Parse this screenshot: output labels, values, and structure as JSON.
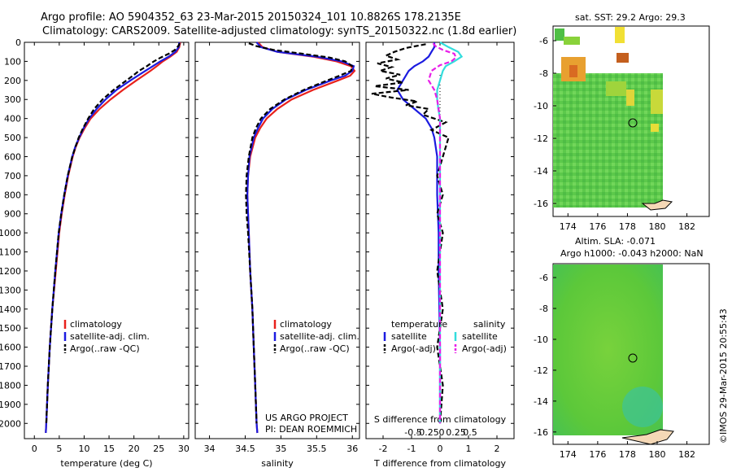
{
  "title_line1": "Argo profile: AO 5904352_63 23-Mar-2015 20150324_101 10.8826S 178.2135E",
  "title_line2": "Climatology: CARS2009. Satellite-adjusted climatology: synTS_20150322.nc (1.8d earlier)",
  "colors": {
    "climatology": "#e8211c",
    "satellite": "#1b1be0",
    "argo": "#000000",
    "satellite_s": "#33dddd",
    "argo_s": "#e81ee8"
  },
  "depth_ticks": [
    "0",
    "100",
    "200",
    "300",
    "400",
    "500",
    "600",
    "700",
    "800",
    "900",
    "1000",
    "1100",
    "1200",
    "1300",
    "1400",
    "1500",
    "1600",
    "1700",
    "1800",
    "1900",
    "2000"
  ],
  "footer_left": "US ARGO PROJECT",
  "footer_left2": "PI: DEAN ROEMMICH",
  "stamp": "©IMOS 29-Mar-2015 20:55:43",
  "chart_data": [
    {
      "type": "line",
      "xlabel": "temperature (deg C)",
      "ylabel": "",
      "xlim": [
        -2,
        31
      ],
      "ylim": [
        2080,
        0
      ],
      "x_ticks": [
        "0",
        "5",
        "10",
        "15",
        "20",
        "25",
        "30"
      ],
      "legend": [
        "climatology",
        "satellite-adj. clim.",
        "Argo(..raw -QC)"
      ],
      "series": [
        {
          "name": "climatology",
          "depth": [
            0,
            25,
            50,
            75,
            100,
            125,
            150,
            200,
            250,
            300,
            350,
            400,
            450,
            500,
            550,
            600,
            700,
            800,
            900,
            1000,
            1200,
            1400,
            1600,
            1800,
            2000,
            2050
          ],
          "values": [
            29.3,
            29.1,
            28.6,
            27.3,
            25.8,
            24.6,
            23.3,
            20.5,
            17.8,
            15.3,
            13.1,
            11.3,
            10.1,
            9.1,
            8.3,
            7.7,
            6.8,
            6.1,
            5.5,
            5.0,
            4.3,
            3.6,
            3.1,
            2.7,
            2.4,
            2.3
          ]
        },
        {
          "name": "satellite-adj. clim.",
          "depth": [
            0,
            25,
            50,
            75,
            100,
            125,
            150,
            200,
            250,
            300,
            350,
            400,
            450,
            500,
            550,
            600,
            700,
            800,
            900,
            1000,
            1200,
            1400,
            1600,
            1800,
            2000,
            2050
          ],
          "values": [
            29.1,
            29.0,
            28.3,
            27.0,
            25.3,
            23.8,
            22.3,
            19.3,
            16.5,
            14.3,
            12.5,
            11.0,
            9.9,
            9.0,
            8.2,
            7.6,
            6.7,
            6.0,
            5.4,
            4.9,
            4.2,
            3.6,
            3.1,
            2.7,
            2.4,
            2.3
          ]
        },
        {
          "name": "Argo(..raw -QC)",
          "depth": [
            5,
            20,
            40,
            60,
            80,
            100,
            125,
            150,
            175,
            200,
            250,
            300,
            350,
            400,
            450,
            500,
            600,
            700,
            800,
            900,
            1000,
            1200,
            1400,
            1600,
            1800,
            2000
          ],
          "values": [
            29.2,
            28.9,
            28.2,
            27.0,
            25.4,
            24.0,
            22.6,
            21.0,
            19.8,
            18.5,
            15.9,
            13.7,
            12.0,
            10.8,
            9.8,
            8.9,
            7.6,
            6.7,
            6.0,
            5.4,
            4.9,
            4.2,
            3.6,
            3.1,
            2.7,
            2.4
          ]
        }
      ]
    },
    {
      "type": "line",
      "xlabel": "salinity",
      "ylabel": "",
      "xlim": [
        33.8,
        36.1
      ],
      "ylim": [
        2080,
        0
      ],
      "x_ticks": [
        "34",
        "34.5",
        "35",
        "35.5",
        "36"
      ],
      "legend": [
        "climatology",
        "satellite-adj. clim.",
        "Argo(..raw -QC)"
      ],
      "series": [
        {
          "name": "climatology",
          "depth": [
            0,
            25,
            50,
            75,
            100,
            125,
            150,
            175,
            200,
            250,
            300,
            350,
            400,
            450,
            500,
            600,
            700,
            800,
            900,
            1000,
            1200,
            1400,
            1600,
            1800,
            2000,
            2050
          ],
          "values": [
            34.68,
            34.74,
            34.95,
            35.45,
            35.78,
            35.98,
            36.03,
            35.97,
            35.8,
            35.45,
            35.15,
            34.95,
            34.8,
            34.71,
            34.64,
            34.57,
            34.54,
            34.53,
            34.54,
            34.55,
            34.57,
            34.6,
            34.62,
            34.64,
            34.66,
            34.67
          ]
        },
        {
          "name": "satellite-adj. clim.",
          "depth": [
            0,
            25,
            50,
            75,
            100,
            125,
            150,
            175,
            200,
            250,
            300,
            350,
            400,
            450,
            500,
            600,
            700,
            800,
            900,
            1000,
            1200,
            1400,
            1600,
            1800,
            2000,
            2050
          ],
          "values": [
            34.66,
            34.72,
            34.95,
            35.5,
            35.85,
            36.02,
            36.0,
            35.9,
            35.7,
            35.35,
            35.07,
            34.88,
            34.75,
            34.68,
            34.62,
            34.56,
            34.54,
            34.53,
            34.54,
            34.55,
            34.57,
            34.6,
            34.62,
            34.64,
            34.66,
            34.67
          ]
        },
        {
          "name": "Argo(..raw -QC)",
          "depth": [
            5,
            20,
            40,
            60,
            80,
            100,
            125,
            150,
            175,
            200,
            250,
            300,
            350,
            400,
            450,
            500,
            600,
            700,
            800,
            900,
            1000,
            1200,
            1400,
            1600,
            1800,
            2000
          ],
          "values": [
            34.55,
            34.66,
            34.9,
            35.3,
            35.68,
            35.9,
            36.0,
            35.98,
            35.82,
            35.65,
            35.32,
            35.05,
            34.85,
            34.72,
            34.65,
            34.6,
            34.55,
            34.52,
            34.51,
            34.52,
            34.54,
            34.57,
            34.6,
            34.62,
            34.64,
            34.66
          ]
        }
      ]
    },
    {
      "type": "line",
      "xlabel": "T difference from climatology",
      "xlabel_top": "S difference from climatology",
      "ylabel": "",
      "xlim": [
        -2.6,
        2.6
      ],
      "ylim": [
        2080,
        0
      ],
      "x_ticks": [
        "-2",
        "-1",
        "0",
        "1",
        "2"
      ],
      "x_ticks_top": [
        "-0.5",
        "-0.25",
        "0",
        "0.25",
        "0.5"
      ],
      "legend_title_t": "temperature",
      "legend_title_s": "salinity",
      "legend": [
        "satellite",
        "Argo(-adj)",
        "satellite",
        "Argo(-adj)"
      ],
      "series": [
        {
          "name": "satellite",
          "depth": [
            0,
            25,
            50,
            75,
            100,
            125,
            150,
            200,
            250,
            300,
            350,
            400,
            450,
            500,
            600,
            700,
            800,
            1000,
            1200,
            1600,
            2000
          ],
          "values": [
            -0.2,
            -0.2,
            -0.3,
            -0.4,
            -0.6,
            -0.9,
            -1.1,
            -1.3,
            -1.5,
            -1.3,
            -0.9,
            -0.5,
            -0.3,
            -0.2,
            -0.1,
            -0.1,
            -0.1,
            -0.05,
            -0.05,
            0,
            0
          ]
        },
        {
          "name": "Argo(-adj)",
          "depth": [
            10,
            30,
            50,
            70,
            90,
            110,
            130,
            150,
            170,
            190,
            210,
            230,
            250,
            270,
            290,
            310,
            330,
            350,
            380,
            420,
            460,
            500,
            600,
            700,
            800,
            900,
            1000,
            1200,
            1400,
            1600,
            1800,
            2000
          ],
          "values": [
            -0.5,
            -1.2,
            -1.6,
            -1.9,
            -1.5,
            -2.2,
            -1.7,
            -2.1,
            -1.4,
            -1.9,
            -1.3,
            -2.3,
            -1.1,
            -2.4,
            -1.7,
            -0.8,
            -1.2,
            -0.4,
            -0.6,
            0.2,
            -0.3,
            0.3,
            0.1,
            -0.1,
            0.1,
            -0.1,
            0.1,
            -0.1,
            0.1,
            -0.1,
            0.1,
            0
          ]
        },
        {
          "name": "satellite",
          "depth": [
            0,
            25,
            50,
            75,
            100,
            125,
            150,
            200,
            250,
            300,
            350,
            400,
            500,
            600,
            800,
            1000,
            1500,
            2000
          ],
          "values": [
            0.0,
            0.15,
            0.32,
            0.38,
            0.25,
            0.1,
            0.05,
            0.0,
            -0.05,
            -0.05,
            -0.03,
            0.0,
            0.0,
            0.0,
            0.0,
            0.0,
            0.0,
            0.0
          ]
        },
        {
          "name": "Argo(-adj)",
          "depth": [
            5,
            20,
            40,
            60,
            80,
            100,
            120,
            150,
            200,
            250,
            300,
            400,
            500,
            800,
            1200,
            1600,
            2000
          ],
          "values": [
            -0.12,
            -0.08,
            0.05,
            0.25,
            0.28,
            0.2,
            0.0,
            -0.15,
            -0.2,
            -0.1,
            -0.05,
            0.0,
            0.0,
            0.0,
            0.0,
            0.0,
            0.0
          ]
        }
      ]
    },
    {
      "type": "heatmap",
      "title": "sat. SST: 29.2  Argo: 29.3",
      "x_ticks": [
        "174",
        "176",
        "178",
        "180",
        "182"
      ],
      "y_ticks": [
        "-6",
        "-8",
        "-10",
        "-12",
        "-14",
        "-16"
      ],
      "xlim": [
        173,
        183.5
      ],
      "ylim": [
        -16.8,
        -5.1
      ],
      "marker": [
        178.2,
        -10.9
      ]
    },
    {
      "type": "heatmap",
      "title": "Altim. SLA: -0.071",
      "subtitle": "Argo h1000: -0.043 h2000: NaN",
      "x_ticks": [
        "174",
        "176",
        "178",
        "180",
        "182"
      ],
      "y_ticks": [
        "-6",
        "-8",
        "-10",
        "-12",
        "-14",
        "-16"
      ],
      "xlim": [
        173,
        183.5
      ],
      "ylim": [
        -16.8,
        -5.1
      ],
      "marker": [
        178.2,
        -10.9
      ]
    }
  ]
}
